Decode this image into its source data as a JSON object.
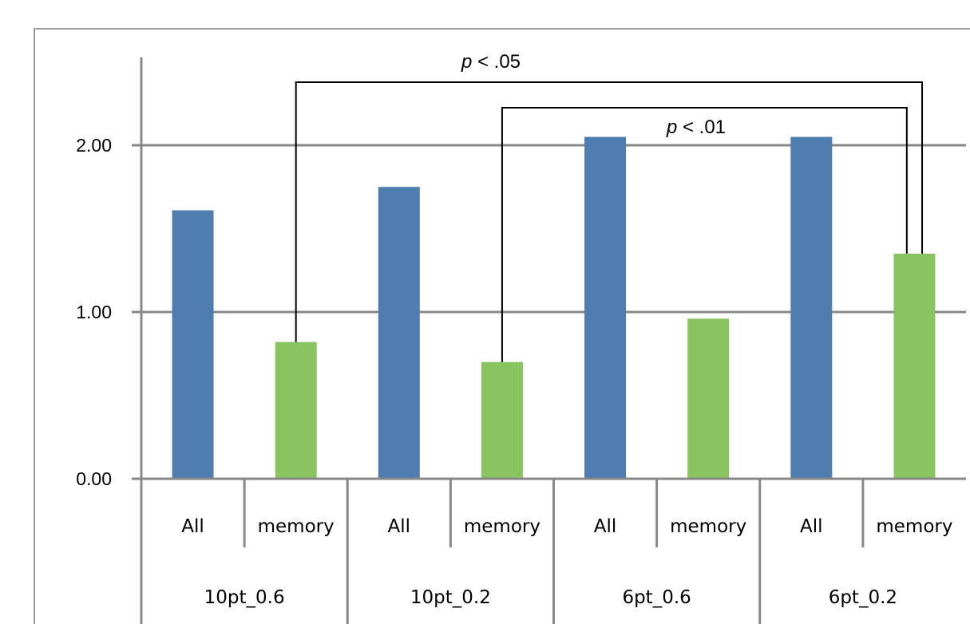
{
  "chart_data": {
    "type": "bar",
    "ylim": [
      0,
      2
    ],
    "yticks": [
      "0.00",
      "1.00",
      "2.00"
    ],
    "grid": true,
    "groups": [
      "10pt_0.6",
      "10pt_0.2",
      "6pt_0.6",
      "6pt_0.2"
    ],
    "categories": [
      "All",
      "memory",
      "All",
      "memory",
      "All",
      "memory",
      "All",
      "memory"
    ],
    "values": [
      1.61,
      0.82,
      1.75,
      0.7,
      2.05,
      0.96,
      2.05,
      1.35
    ],
    "colors": {
      "All": "#4f7db0",
      "memory": "#8ac461",
      "axis": "#888888",
      "bracket": "#000000"
    },
    "annotations": [
      {
        "label_italic": "p",
        "label_rest": " < .05",
        "from_bar": 1,
        "to_bar": 7
      },
      {
        "label_italic": "p",
        "label_rest": " < .01",
        "from_bar": 3,
        "to_bar": 7
      }
    ]
  }
}
